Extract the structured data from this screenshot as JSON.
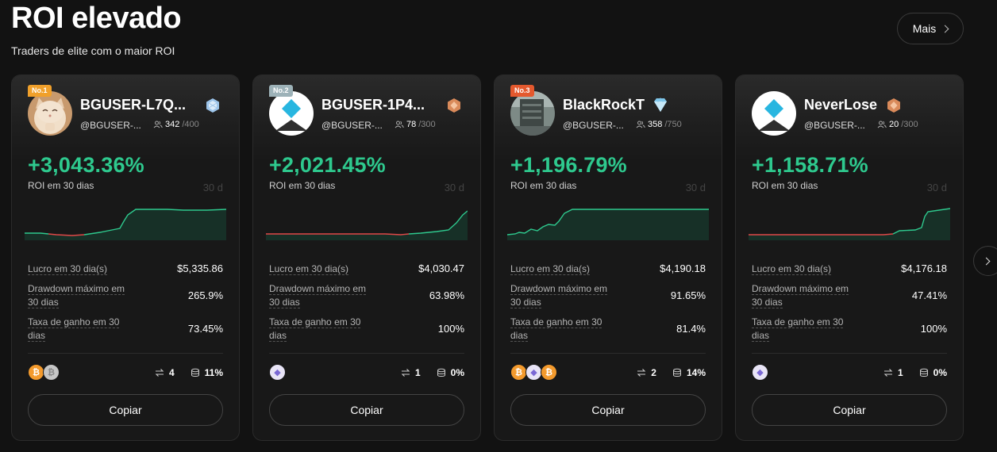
{
  "header": {
    "title": "ROI elevado",
    "subtitle": "Traders de elite com o maior ROI",
    "more_label": "Mais"
  },
  "colors": {
    "roi_positive": "#2ec98e",
    "chart_negative": "#e04848",
    "rank1": "#f0a02b",
    "rank2": "#9db2b8",
    "rank3": "#e4592e"
  },
  "cards": [
    {
      "rank": "No.1",
      "name": "BGUSER-L7Q...",
      "badge_icon": "diamond-tier-icon",
      "avatar_icon": "cat-avatar",
      "handle": "@BGUSER-...",
      "followers": "342",
      "followers_max": "/400",
      "roi": "+3,043.36%",
      "roi_label": "ROI em 30 dias",
      "chart_period": "30 d",
      "profit_label": "Lucro em 30 dia(s)",
      "profit_value": "$5,335.86",
      "drawdown_label_1": "Drawdown máximo em",
      "drawdown_label_2": "30 dias",
      "drawdown_value": "265.9%",
      "winrate_label_1": "Taxa de ganho em 30",
      "winrate_label_2": "dias",
      "winrate_value": "73.45%",
      "coins": [
        "btc",
        "silver"
      ],
      "pairs": "4",
      "share": "11%",
      "copy_label": "Copiar"
    },
    {
      "rank": "No.2",
      "name": "BGUSER-1P4...",
      "badge_icon": "bronze-tier-icon",
      "avatar_icon": "default-diamond-avatar",
      "handle": "@BGUSER-...",
      "followers": "78",
      "followers_max": "/300",
      "roi": "+2,021.45%",
      "roi_label": "ROI em 30 dias",
      "chart_period": "30 d",
      "profit_label": "Lucro em 30 dia(s)",
      "profit_value": "$4,030.47",
      "drawdown_label_1": "Drawdown máximo em",
      "drawdown_label_2": "30 dias",
      "drawdown_value": "63.98%",
      "winrate_label_1": "Taxa de ganho em 30",
      "winrate_label_2": "dias",
      "winrate_value": "100%",
      "coins": [
        "eth"
      ],
      "pairs": "1",
      "share": "0%",
      "copy_label": "Copiar"
    },
    {
      "rank": "No.3",
      "name": "BlackRockT",
      "badge_icon": "diamond-tier-icon",
      "avatar_icon": "building-avatar",
      "handle": "@BGUSER-...",
      "followers": "358",
      "followers_max": "/750",
      "roi": "+1,196.79%",
      "roi_label": "ROI em 30 dias",
      "chart_period": "30 d",
      "profit_label": "Lucro em 30 dia(s)",
      "profit_value": "$4,190.18",
      "drawdown_label_1": "Drawdown máximo em",
      "drawdown_label_2": "30 dias",
      "drawdown_value": "91.65%",
      "winrate_label_1": "Taxa de ganho em 30",
      "winrate_label_2": "dias",
      "winrate_value": "81.4%",
      "coins": [
        "btc",
        "eth",
        "btc"
      ],
      "pairs": "2",
      "share": "14%",
      "copy_label": "Copiar"
    },
    {
      "rank": "",
      "name": "NeverLose",
      "badge_icon": "bronze-tier-icon",
      "avatar_icon": "default-diamond-avatar",
      "handle": "@BGUSER-...",
      "followers": "20",
      "followers_max": "/300",
      "roi": "+1,158.71%",
      "roi_label": "ROI em 30 dias",
      "chart_period": "30 d",
      "profit_label": "Lucro em 30 dia(s)",
      "profit_value": "$4,176.18",
      "drawdown_label_1": "Drawdown máximo em",
      "drawdown_label_2": "30 dias",
      "drawdown_value": "47.41%",
      "winrate_label_1": "Taxa de ganho em 30",
      "winrate_label_2": "dias",
      "winrate_value": "100%",
      "coins": [
        "eth"
      ],
      "pairs": "1",
      "share": "0%",
      "copy_label": "Copiar"
    }
  ]
}
